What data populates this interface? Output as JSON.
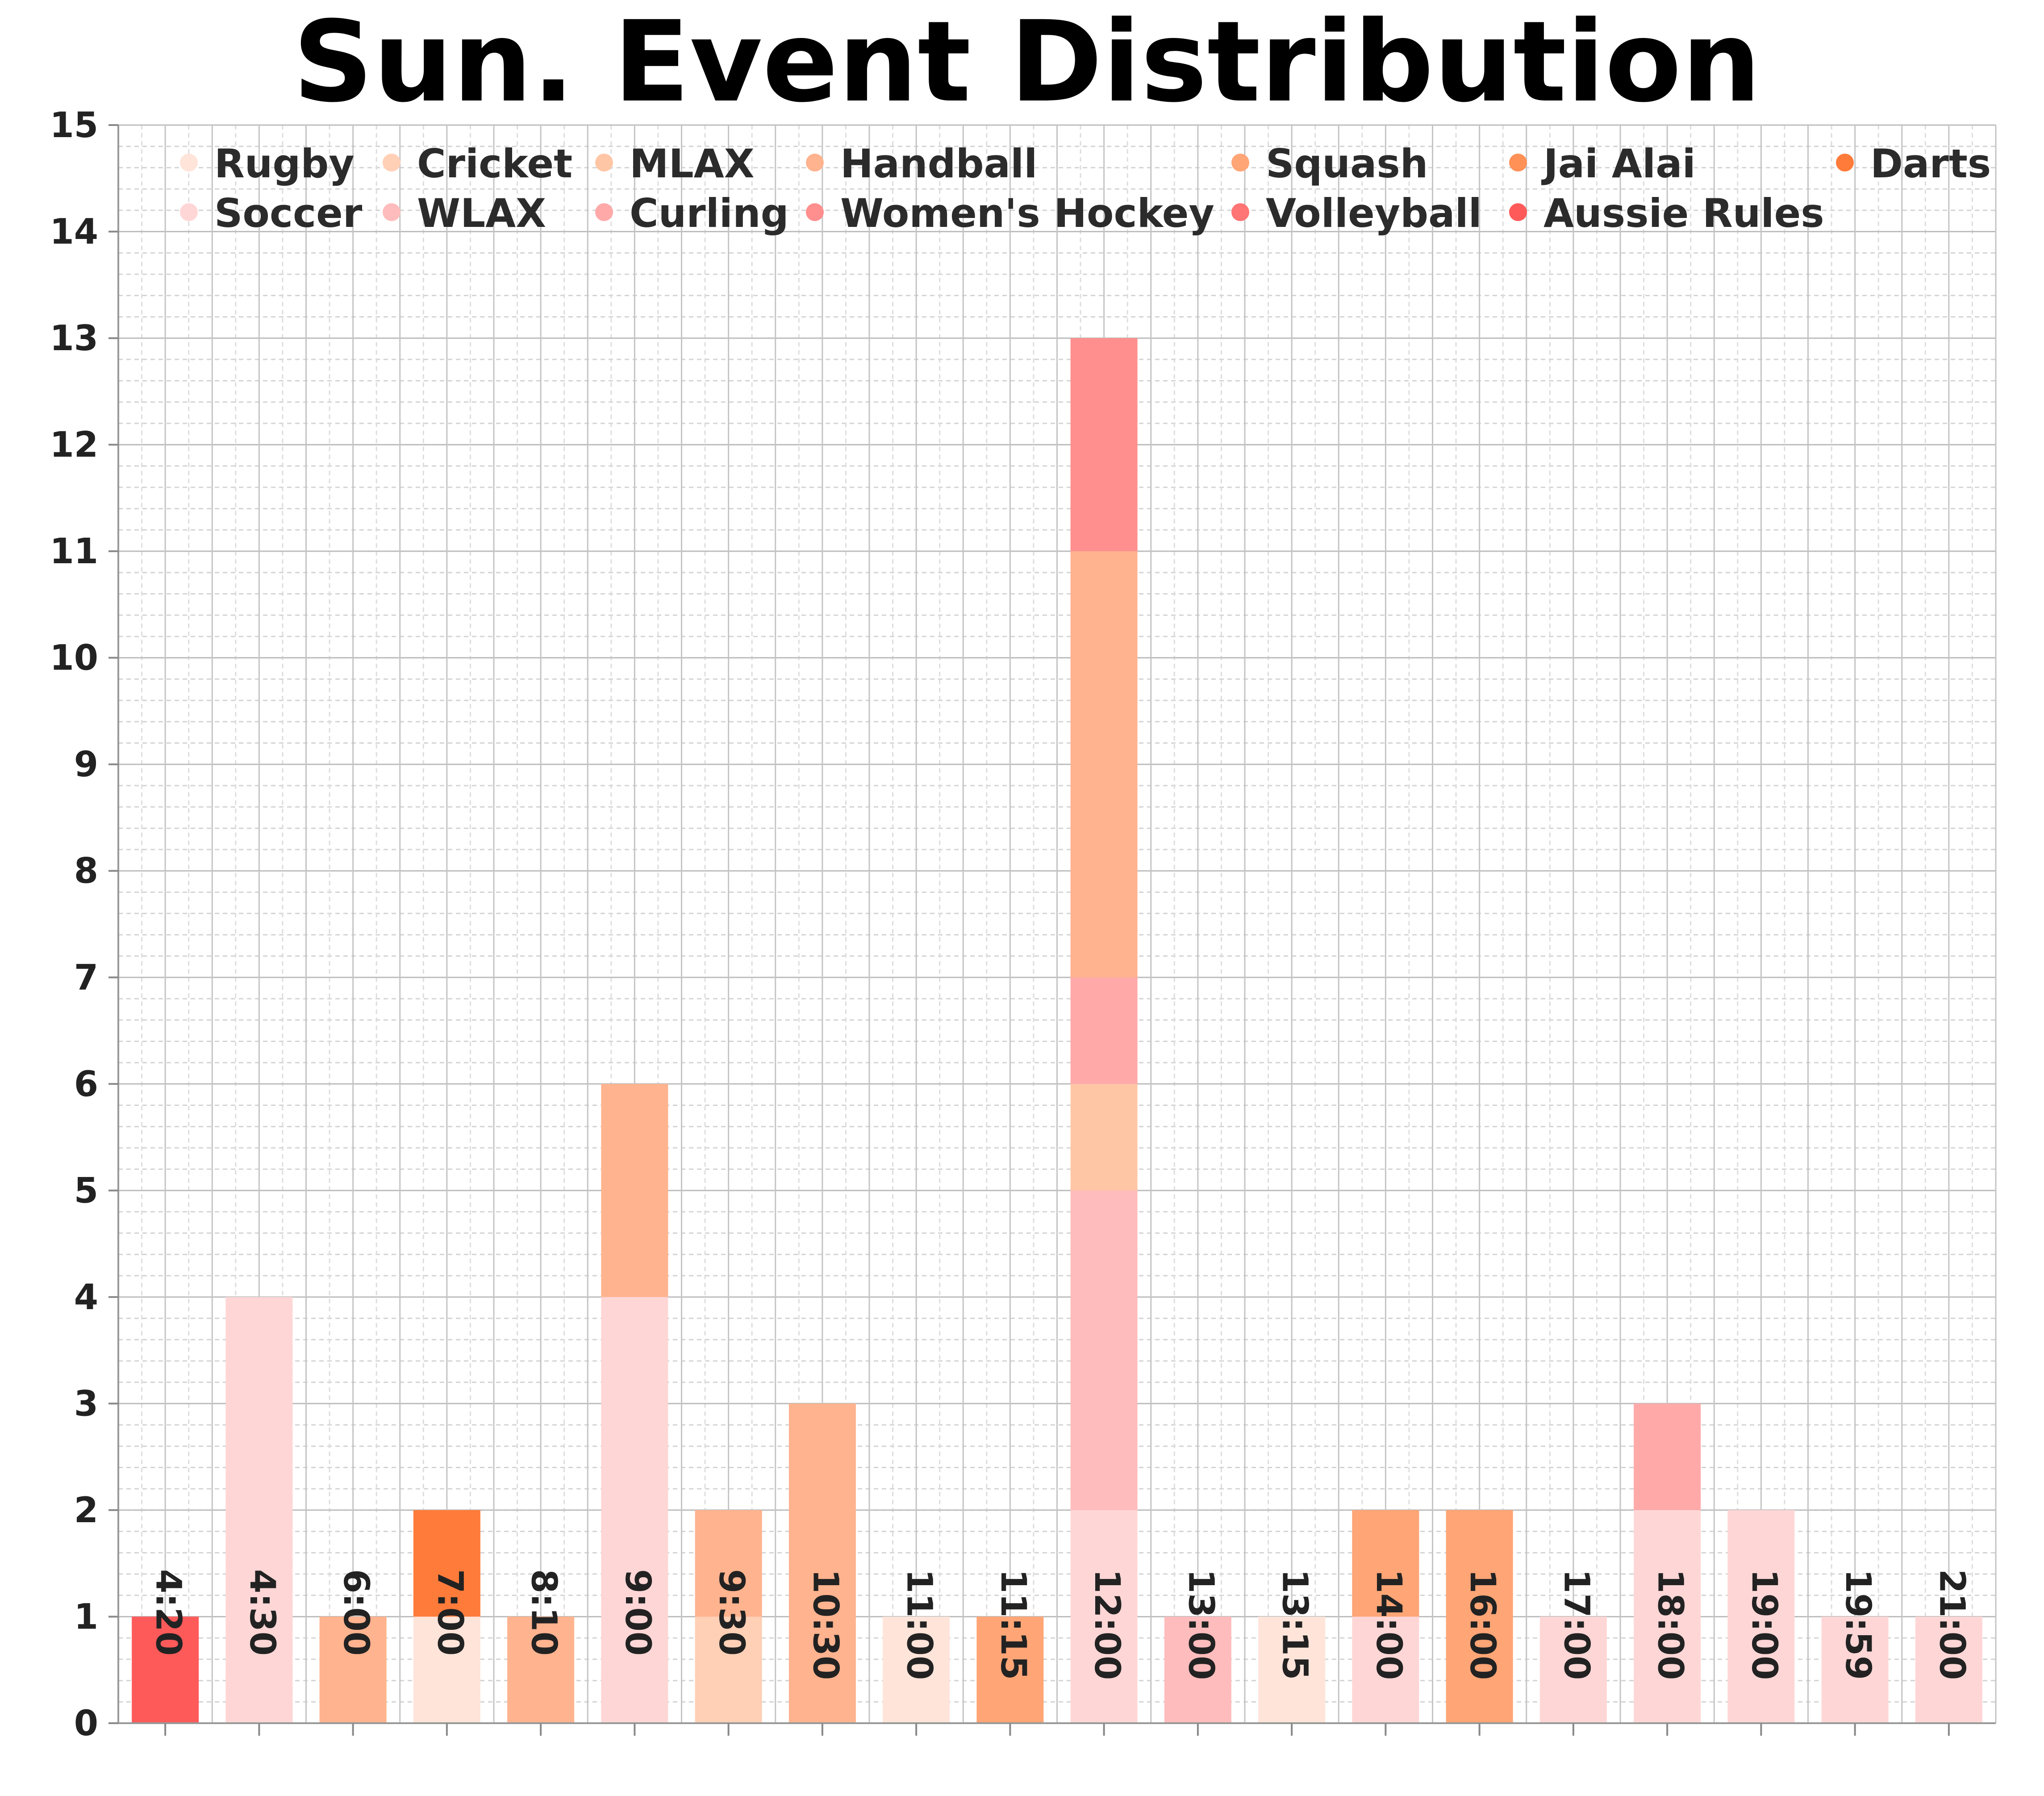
{
  "chart_data": {
    "type": "bar",
    "stacked": true,
    "title": "Sun. Event Distribution",
    "xlabel": "",
    "ylabel": "",
    "ylim": [
      0,
      15
    ],
    "yticks": [
      "0",
      "1",
      "2",
      "3",
      "4",
      "5",
      "6",
      "7",
      "8",
      "9",
      "10",
      "11",
      "12",
      "13",
      "14",
      "15"
    ],
    "grid": true,
    "legend_position": "top",
    "categories": [
      "4:20",
      "4:30",
      "6:00",
      "7:00",
      "8:10",
      "9:00",
      "9:30",
      "10:30",
      "11:00",
      "11:15",
      "12:00",
      "13:00",
      "13:15",
      "14:00",
      "16:00",
      "17:00",
      "18:00",
      "19:00",
      "19:59",
      "21:00"
    ],
    "series": [
      {
        "name": "Rugby",
        "color": "#ffe4d9",
        "values": [
          0,
          0,
          0,
          1,
          0,
          0,
          0,
          0,
          1,
          0,
          0,
          0,
          1,
          0,
          0,
          0,
          0,
          0,
          0,
          0
        ]
      },
      {
        "name": "Soccer",
        "color": "#ffd6d6",
        "values": [
          0,
          4,
          0,
          0,
          0,
          4,
          0,
          0,
          0,
          0,
          2,
          0,
          0,
          1,
          0,
          1,
          2,
          2,
          1,
          1
        ]
      },
      {
        "name": "Cricket",
        "color": "#ffd0b6",
        "values": [
          0,
          0,
          0,
          0,
          0,
          0,
          1,
          0,
          0,
          0,
          0,
          0,
          0,
          0,
          0,
          0,
          0,
          0,
          0,
          0
        ]
      },
      {
        "name": "WLAX",
        "color": "#ffbcbc",
        "values": [
          0,
          0,
          0,
          0,
          0,
          0,
          0,
          0,
          0,
          0,
          3,
          1,
          0,
          0,
          0,
          0,
          0,
          0,
          0,
          0
        ]
      },
      {
        "name": "MLAX",
        "color": "#ffc6a6",
        "values": [
          0,
          0,
          0,
          0,
          0,
          0,
          0,
          0,
          0,
          0,
          1,
          0,
          0,
          0,
          0,
          0,
          0,
          0,
          0,
          0
        ]
      },
      {
        "name": "Curling",
        "color": "#ffa9a9",
        "values": [
          0,
          0,
          0,
          0,
          0,
          0,
          0,
          0,
          0,
          0,
          1,
          0,
          0,
          0,
          0,
          0,
          1,
          0,
          0,
          0
        ]
      },
      {
        "name": "Handball",
        "color": "#ffb38e",
        "values": [
          0,
          0,
          1,
          0,
          1,
          2,
          1,
          3,
          0,
          0,
          4,
          0,
          0,
          0,
          0,
          0,
          0,
          0,
          0,
          0
        ]
      },
      {
        "name": "Women's Hockey",
        "color": "#ff8e8e",
        "values": [
          0,
          0,
          0,
          0,
          0,
          0,
          0,
          0,
          0,
          0,
          2,
          0,
          0,
          0,
          0,
          0,
          0,
          0,
          0,
          0
        ]
      },
      {
        "name": "Squash",
        "color": "#ffa576",
        "values": [
          0,
          0,
          0,
          0,
          0,
          0,
          0,
          0,
          0,
          1,
          0,
          0,
          0,
          1,
          2,
          0,
          0,
          0,
          0,
          0
        ]
      },
      {
        "name": "Volleyball",
        "color": "#ff7474",
        "values": [
          0,
          0,
          0,
          0,
          0,
          0,
          0,
          0,
          0,
          0,
          0,
          0,
          0,
          0,
          0,
          0,
          0,
          0,
          0,
          0
        ]
      },
      {
        "name": "Jai Alai",
        "color": "#ff9056",
        "values": [
          0,
          0,
          0,
          0,
          0,
          0,
          0,
          0,
          0,
          0,
          0,
          0,
          0,
          0,
          0,
          0,
          0,
          0,
          0,
          0
        ]
      },
      {
        "name": "Aussie Rules",
        "color": "#ff5a5a",
        "values": [
          1,
          0,
          0,
          0,
          0,
          0,
          0,
          0,
          0,
          0,
          0,
          0,
          0,
          0,
          0,
          0,
          0,
          0,
          0,
          0
        ]
      },
      {
        "name": "Darts",
        "color": "#ff7b3a",
        "values": [
          0,
          0,
          0,
          1,
          0,
          0,
          0,
          0,
          0,
          0,
          0,
          0,
          0,
          0,
          0,
          0,
          0,
          0,
          0,
          0
        ]
      }
    ],
    "legend_order": [
      [
        "Rugby",
        "Cricket",
        "MLAX",
        "Handball",
        "Squash",
        "Jai Alai",
        "Darts"
      ],
      [
        "Soccer",
        "WLAX",
        "Curling",
        "Women's Hockey",
        "Volleyball",
        "Aussie Rules"
      ]
    ]
  }
}
